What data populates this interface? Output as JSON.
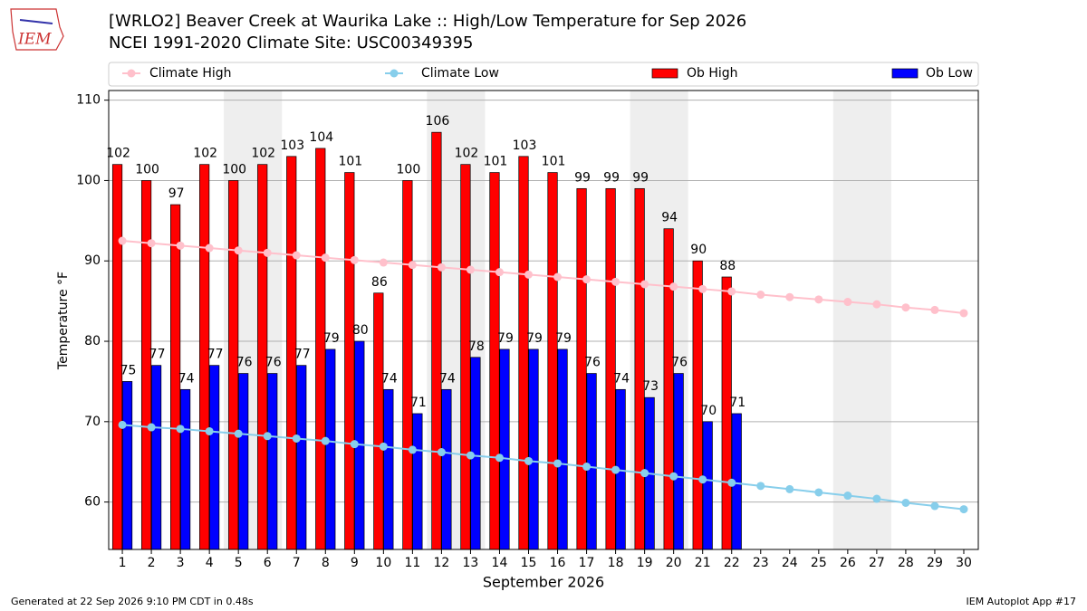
{
  "chart_data": {
    "type": "bar",
    "title": "[WRLO2] Beaver Creek at Waurika Lake :: High/Low Temperature for Sep 2026",
    "subtitle": "NCEI 1991-2020 Climate Site: USC00349395",
    "logo_text": "IEM",
    "x_label": "September 2026",
    "y_label": "Temperature °F",
    "footer_left": "Generated at 22 Sep 2026 9:10 PM CDT in 0.48s",
    "footer_right": "IEM Autoplot App #17",
    "x": [
      1,
      2,
      3,
      4,
      5,
      6,
      7,
      8,
      9,
      10,
      11,
      12,
      13,
      14,
      15,
      16,
      17,
      18,
      19,
      20,
      21,
      22,
      23,
      24,
      25,
      26,
      27,
      28,
      29,
      30
    ],
    "xlim": [
      0.53,
      30.5
    ],
    "xticks": [
      1,
      2,
      3,
      4,
      5,
      6,
      7,
      8,
      9,
      10,
      11,
      12,
      13,
      14,
      15,
      16,
      17,
      18,
      19,
      20,
      21,
      22,
      23,
      24,
      25,
      26,
      27,
      28,
      29,
      30
    ],
    "ylim": [
      54.1,
      111.2
    ],
    "yticks": [
      60,
      70,
      80,
      90,
      100,
      110
    ],
    "grid": true,
    "shading": [
      [
        4.5,
        6.5
      ],
      [
        11.5,
        13.5
      ],
      [
        18.5,
        20.5
      ],
      [
        25.5,
        27.5
      ]
    ],
    "series": [
      {
        "name": "Climate High",
        "kind": "line",
        "color": "#ffc0cb",
        "values": [
          92.5,
          92.2,
          91.9,
          91.6,
          91.3,
          91.0,
          90.7,
          90.4,
          90.1,
          89.8,
          89.5,
          89.2,
          88.9,
          88.6,
          88.3,
          88.0,
          87.7,
          87.4,
          87.1,
          86.8,
          86.5,
          86.2,
          85.8,
          85.5,
          85.2,
          84.9,
          84.6,
          84.2,
          83.9,
          83.5
        ]
      },
      {
        "name": "Climate Low",
        "kind": "line",
        "color": "#87ceeb",
        "values": [
          69.6,
          69.3,
          69.1,
          68.8,
          68.5,
          68.2,
          67.9,
          67.6,
          67.2,
          66.9,
          66.5,
          66.2,
          65.8,
          65.5,
          65.1,
          64.8,
          64.4,
          64.0,
          63.6,
          63.2,
          62.8,
          62.4,
          62.0,
          61.6,
          61.2,
          60.8,
          60.4,
          59.9,
          59.5,
          59.1
        ]
      },
      {
        "name": "Ob High",
        "kind": "bar",
        "color": "#ff0000",
        "values": [
          102,
          100,
          97,
          102,
          100,
          102,
          103,
          104,
          101,
          86,
          100,
          106,
          102,
          101,
          103,
          101,
          99,
          99,
          99,
          94,
          90,
          88,
          null,
          null,
          null,
          null,
          null,
          null,
          null,
          null
        ]
      },
      {
        "name": "Ob Low",
        "kind": "bar",
        "color": "#0000ff",
        "values": [
          75,
          77,
          74,
          77,
          76,
          76,
          77,
          79,
          80,
          74,
          71,
          74,
          78,
          79,
          79,
          79,
          76,
          74,
          73,
          76,
          70,
          71,
          null,
          null,
          null,
          null,
          null,
          null,
          null,
          null
        ]
      }
    ]
  }
}
